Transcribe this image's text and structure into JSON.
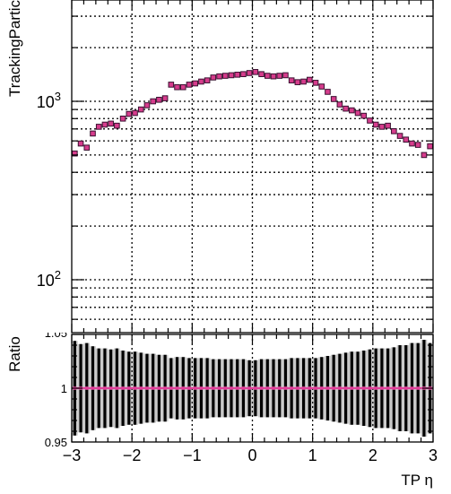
{
  "colors": {
    "marker_fill": "#d63c8c",
    "marker_edge": "#3a1030",
    "ratio_line": "#e0409a",
    "error_band": "#c8c8c8",
    "grid": "#000000"
  },
  "chart_data": [
    {
      "type": "scatter",
      "title": "",
      "xlabel": "",
      "ylabel": "TrackingPartic",
      "yscale": "log",
      "xlim": [
        -3,
        3
      ],
      "ylim": [
        55,
        5000
      ],
      "grid": true,
      "x_ticks": [
        -3,
        -2,
        -1,
        0,
        1,
        2,
        3
      ],
      "y_ticks": [
        {
          "value": 100,
          "base": "10",
          "exp": "2"
        },
        {
          "value": 1000,
          "base": "10",
          "exp": "3"
        }
      ],
      "series": [
        {
          "name": "",
          "x": [
            -2.95,
            -2.85,
            -2.75,
            -2.65,
            -2.55,
            -2.45,
            -2.35,
            -2.25,
            -2.15,
            -2.05,
            -1.95,
            -1.85,
            -1.75,
            -1.65,
            -1.55,
            -1.45,
            -1.35,
            -1.25,
            -1.15,
            -1.05,
            -0.95,
            -0.85,
            -0.75,
            -0.65,
            -0.55,
            -0.45,
            -0.35,
            -0.25,
            -0.15,
            -0.05,
            0.05,
            0.15,
            0.25,
            0.35,
            0.45,
            0.55,
            0.65,
            0.75,
            0.85,
            0.95,
            1.05,
            1.15,
            1.25,
            1.35,
            1.45,
            1.55,
            1.65,
            1.75,
            1.85,
            1.95,
            2.05,
            2.15,
            2.25,
            2.35,
            2.45,
            2.55,
            2.65,
            2.75,
            2.85,
            2.95
          ],
          "y": [
            510,
            580,
            550,
            660,
            720,
            740,
            750,
            730,
            800,
            850,
            860,
            900,
            950,
            1000,
            1020,
            1040,
            1240,
            1200,
            1200,
            1240,
            1260,
            1290,
            1310,
            1360,
            1380,
            1390,
            1400,
            1410,
            1420,
            1440,
            1460,
            1420,
            1390,
            1380,
            1390,
            1400,
            1310,
            1280,
            1290,
            1320,
            1270,
            1210,
            1130,
            1030,
            960,
            910,
            890,
            860,
            830,
            780,
            740,
            720,
            730,
            680,
            640,
            610,
            580,
            570,
            500,
            560
          ]
        }
      ]
    },
    {
      "type": "scatter",
      "title": "",
      "xlabel": "TP η",
      "ylabel": "Ratio",
      "xlim": [
        -3,
        3
      ],
      "ylim": [
        0.95,
        1.05
      ],
      "grid": true,
      "x_ticks": [
        -3,
        -2,
        -1,
        0,
        1,
        2,
        3
      ],
      "x_tick_labels": [
        "−3",
        "−2",
        "−1",
        "0",
        "1",
        "2",
        "3"
      ],
      "y_ticks": [
        {
          "value": 1,
          "label": "1"
        },
        {
          "value": 0.95,
          "label": "0.95"
        }
      ],
      "ymax_label": "1.05",
      "series": [
        {
          "name": "",
          "x": [
            -2.95,
            -2.85,
            -2.75,
            -2.65,
            -2.55,
            -2.45,
            -2.35,
            -2.25,
            -2.15,
            -2.05,
            -1.95,
            -1.85,
            -1.75,
            -1.65,
            -1.55,
            -1.45,
            -1.35,
            -1.25,
            -1.15,
            -1.05,
            -0.95,
            -0.85,
            -0.75,
            -0.65,
            -0.55,
            -0.45,
            -0.35,
            -0.25,
            -0.15,
            -0.05,
            0.05,
            0.15,
            0.25,
            0.35,
            0.45,
            0.55,
            0.65,
            0.75,
            0.85,
            0.95,
            1.05,
            1.15,
            1.25,
            1.35,
            1.45,
            1.55,
            1.65,
            1.75,
            1.85,
            1.95,
            2.05,
            2.15,
            2.25,
            2.35,
            2.45,
            2.55,
            2.65,
            2.75,
            2.85,
            2.95
          ],
          "y": [
            1,
            1,
            1,
            1,
            1,
            1,
            1,
            1,
            1,
            1,
            1,
            1,
            1,
            1,
            1,
            1,
            1,
            1,
            1,
            1,
            1,
            1,
            1,
            1,
            1,
            1,
            1,
            1,
            1,
            1,
            1,
            1,
            1,
            1,
            1,
            1,
            1,
            1,
            1,
            1,
            1,
            1,
            1,
            1,
            1,
            1,
            1,
            1,
            1,
            1,
            1,
            1,
            1,
            1,
            1,
            1,
            1,
            1,
            1,
            1
          ],
          "err": [
            0.044,
            0.041,
            0.042,
            0.039,
            0.037,
            0.037,
            0.036,
            0.037,
            0.035,
            0.034,
            0.034,
            0.033,
            0.032,
            0.032,
            0.031,
            0.031,
            0.028,
            0.029,
            0.029,
            0.028,
            0.028,
            0.028,
            0.028,
            0.027,
            0.027,
            0.027,
            0.027,
            0.027,
            0.027,
            0.026,
            0.026,
            0.027,
            0.027,
            0.027,
            0.027,
            0.027,
            0.028,
            0.028,
            0.028,
            0.028,
            0.028,
            0.029,
            0.03,
            0.031,
            0.032,
            0.033,
            0.034,
            0.034,
            0.035,
            0.036,
            0.037,
            0.037,
            0.037,
            0.038,
            0.04,
            0.04,
            0.042,
            0.042,
            0.045,
            0.042
          ]
        }
      ]
    }
  ]
}
